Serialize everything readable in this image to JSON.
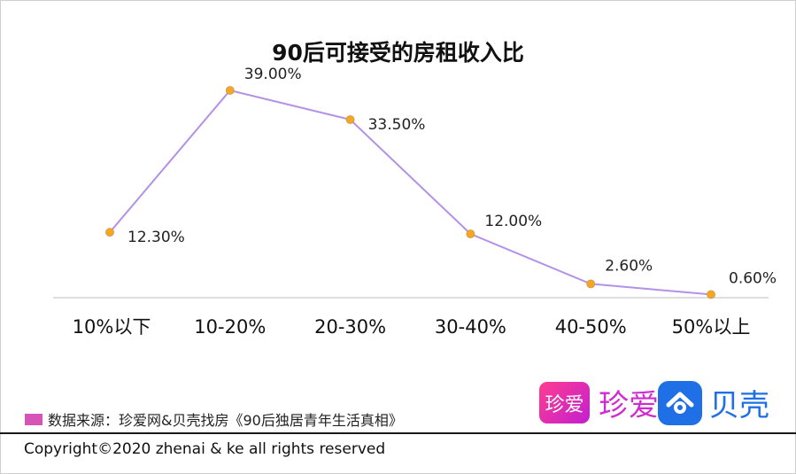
{
  "chart_data": {
    "type": "line",
    "title": "90后可接受的房租收入比",
    "categories": [
      "10%以下",
      "10-20%",
      "20-30%",
      "30-40%",
      "40-50%",
      "50%以上"
    ],
    "series": [
      {
        "values": [
          12.3,
          39.0,
          33.5,
          12.0,
          2.6,
          0.6
        ]
      }
    ],
    "data_labels": [
      "12.30%",
      "39.00%",
      "33.50%",
      "12.00%",
      "2.60%",
      "0.60%"
    ],
    "ylim": [
      0,
      45
    ],
    "grid": false,
    "line_color": "#b391e6",
    "marker_color": "#f5a623"
  },
  "source_note": "数据来源：珍爱网&贝壳找房《90后独居青年生活真相》",
  "source_swatch_color": "#d653b8",
  "logos": {
    "zhenai_box": "珍爱",
    "zhenai_text": "珍爱",
    "ke_text": "贝壳",
    "ke_icon": "house-icon"
  },
  "copyright": "Copyright©2020 zhenai & ke all rights reserved"
}
